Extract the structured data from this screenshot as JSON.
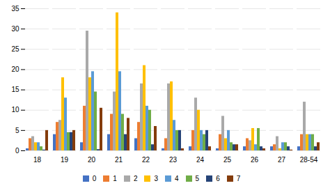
{
  "chart_data": {
    "type": "bar",
    "categories": [
      "18",
      "19",
      "20",
      "21",
      "22",
      "23",
      "24",
      "25",
      "26",
      "27",
      "28-54"
    ],
    "series": [
      {
        "name": "0",
        "color": "#4472C4",
        "values": [
          0.5,
          4.0,
          2.0,
          4.0,
          3.0,
          0.5,
          1.0,
          0.5,
          1.0,
          1.0,
          1.0
        ]
      },
      {
        "name": "1",
        "color": "#ED7D31",
        "values": [
          3.0,
          7.0,
          11.0,
          9.0,
          7.0,
          3.0,
          5.0,
          4.0,
          3.0,
          1.5,
          4.0
        ]
      },
      {
        "name": "2",
        "color": "#A9A9A9",
        "values": [
          3.5,
          7.5,
          29.5,
          14.5,
          16.5,
          16.5,
          13.0,
          8.5,
          2.5,
          3.5,
          12.0
        ]
      },
      {
        "name": "3",
        "color": "#FFC000",
        "values": [
          2.0,
          18.0,
          18.0,
          34.0,
          21.0,
          17.0,
          10.0,
          3.0,
          5.5,
          0.5,
          4.0
        ]
      },
      {
        "name": "4",
        "color": "#5B9BD5",
        "values": [
          2.0,
          13.0,
          19.5,
          19.5,
          11.0,
          7.5,
          5.0,
          5.0,
          1.5,
          2.0,
          4.0
        ]
      },
      {
        "name": "5",
        "color": "#70AD47",
        "values": [
          1.0,
          4.5,
          14.5,
          9.0,
          10.0,
          5.0,
          4.0,
          2.0,
          5.5,
          2.0,
          4.0
        ]
      },
      {
        "name": "6",
        "color": "#264478",
        "values": [
          0.2,
          4.5,
          0.3,
          4.0,
          1.5,
          5.0,
          5.0,
          1.5,
          1.0,
          1.0,
          1.0
        ]
      },
      {
        "name": "7",
        "color": "#843C0C",
        "values": [
          5.0,
          5.0,
          10.5,
          8.0,
          6.0,
          0.5,
          1.0,
          1.5,
          0.5,
          0.2,
          2.0
        ]
      }
    ],
    "ylim": [
      0,
      35
    ],
    "yticks": [
      0,
      5,
      10,
      15,
      20,
      25,
      30,
      35
    ],
    "grid": true,
    "legend": "bottom"
  }
}
